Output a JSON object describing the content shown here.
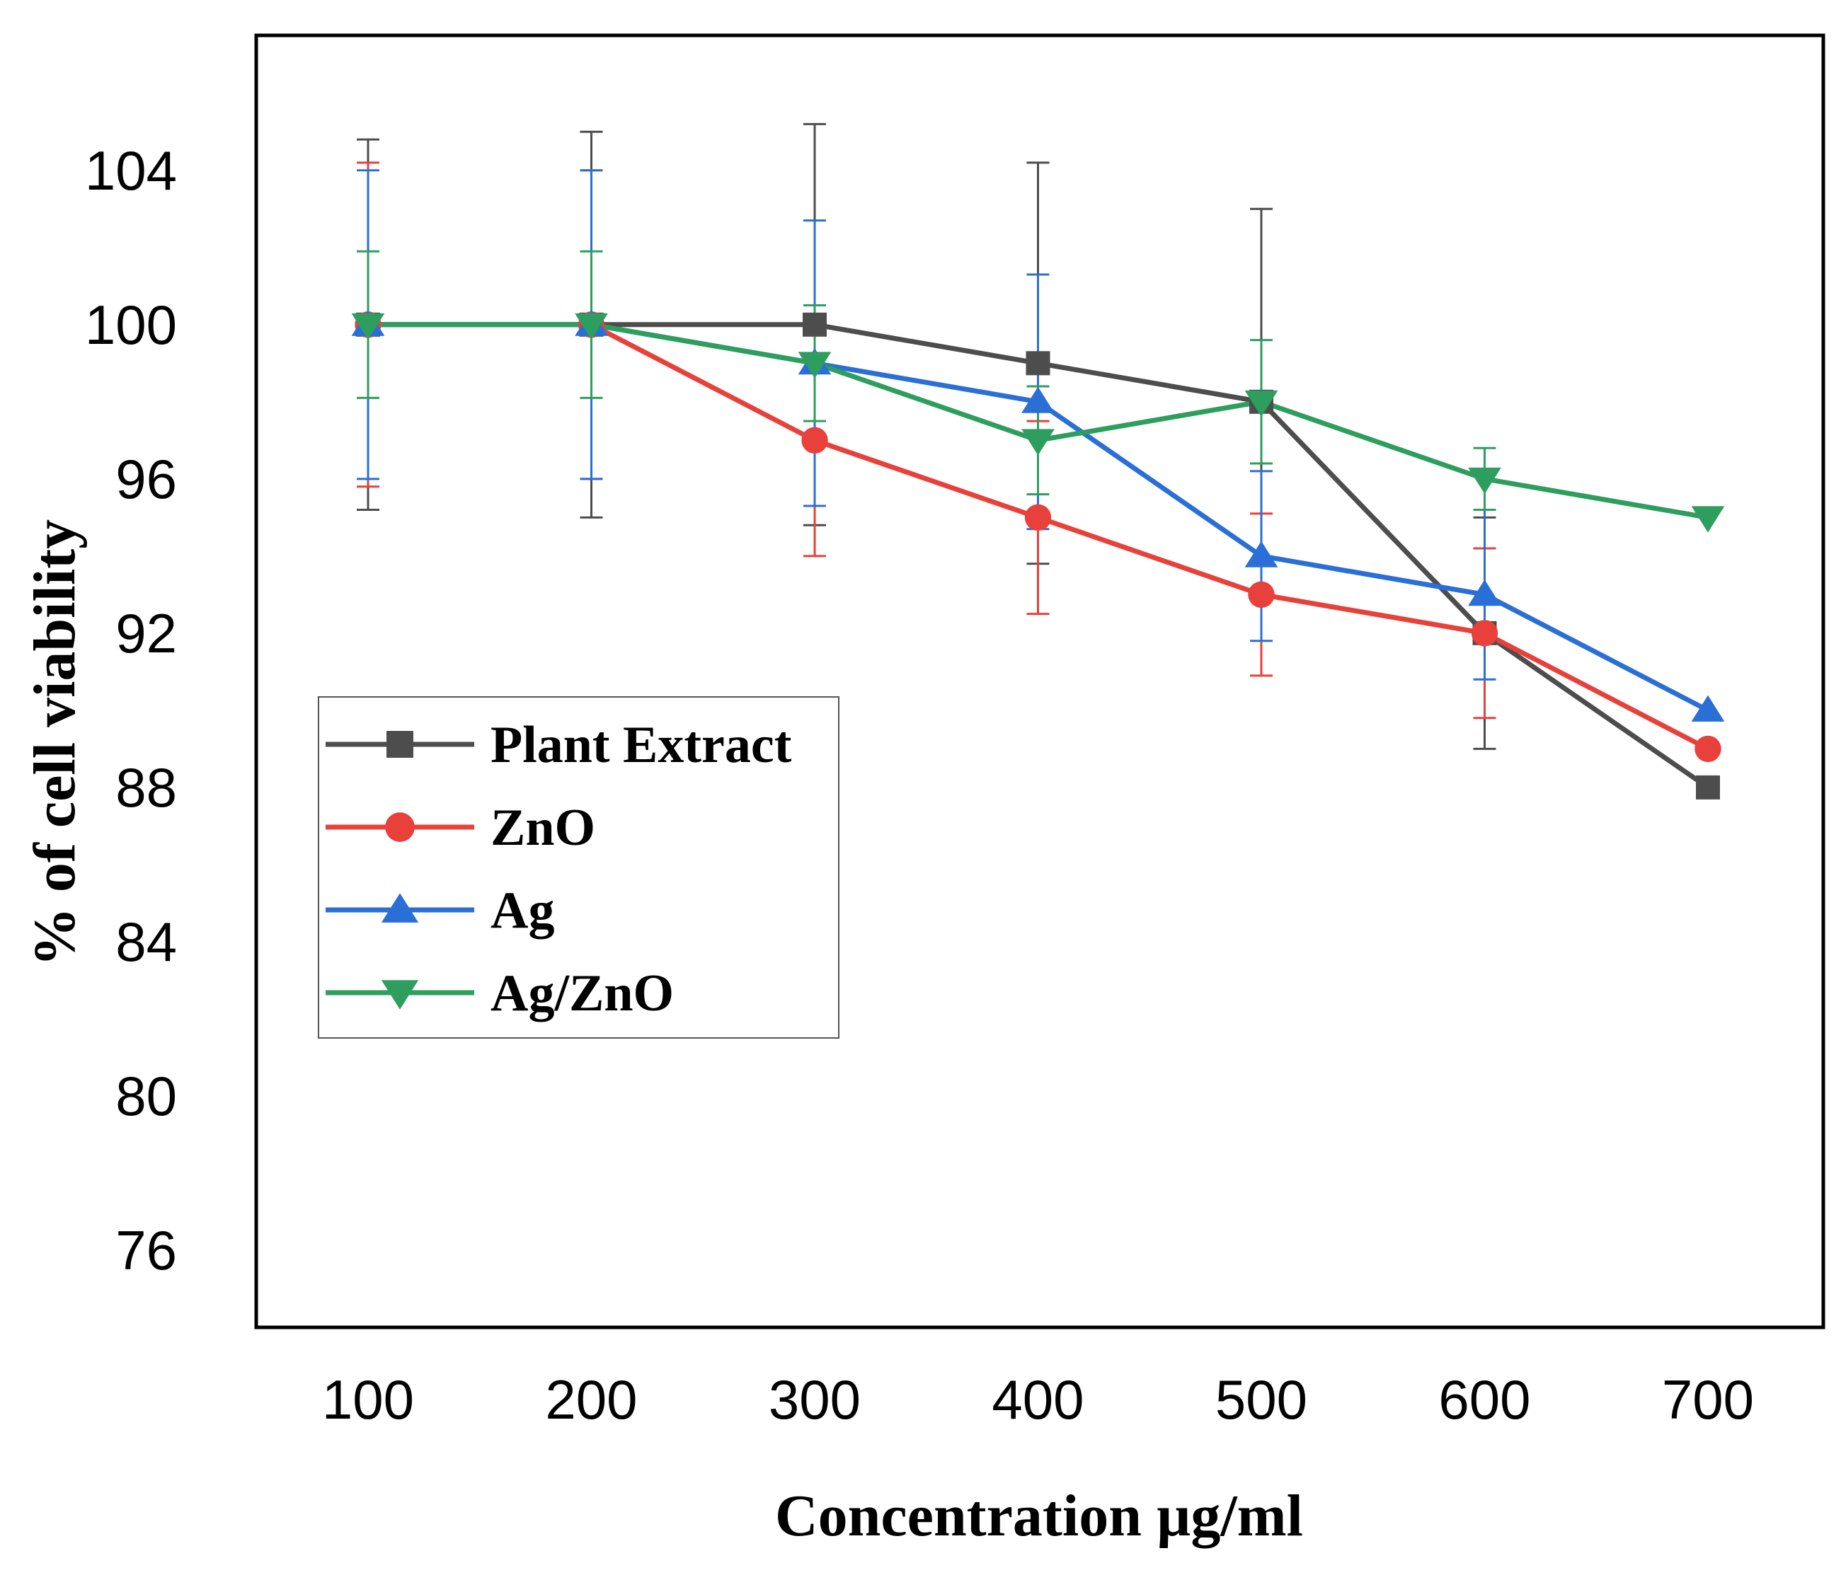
{
  "chart_data": {
    "type": "line",
    "title": "",
    "xlabel": "Concentration µg/ml",
    "ylabel": "% of cell viability",
    "x": [
      100,
      200,
      300,
      400,
      500,
      600,
      700
    ],
    "ylim": [
      74,
      107.5
    ],
    "yticks": [
      76,
      80,
      84,
      88,
      92,
      96,
      100,
      104
    ],
    "grid": false,
    "legend_position": "left-middle",
    "series": [
      {
        "name": "Plant Extract",
        "color": "#4d4d4d",
        "marker": "square",
        "values": [
          100,
          100,
          100,
          99,
          98,
          92,
          88
        ],
        "errors": [
          4.8,
          5.0,
          5.2,
          5.2,
          5.0,
          3.0,
          null
        ]
      },
      {
        "name": "ZnO",
        "color": "#e8403a",
        "marker": "circle",
        "values": [
          100,
          100,
          97,
          95,
          93,
          92,
          89
        ],
        "errors": [
          4.2,
          4.0,
          3.0,
          2.5,
          2.1,
          2.2,
          null
        ]
      },
      {
        "name": "Ag",
        "color": "#2a6fd6",
        "marker": "triangle-up",
        "values": [
          100,
          100,
          99,
          98,
          94,
          93,
          90
        ],
        "errors": [
          4.0,
          4.0,
          3.7,
          3.3,
          2.2,
          2.2,
          null
        ]
      },
      {
        "name": "Ag/ZnO",
        "color": "#2e9e5e",
        "marker": "triangle-down",
        "values": [
          100,
          100,
          99,
          97,
          98,
          96,
          95
        ],
        "errors": [
          1.9,
          1.9,
          1.5,
          1.4,
          1.6,
          0.8,
          null
        ]
      }
    ]
  }
}
